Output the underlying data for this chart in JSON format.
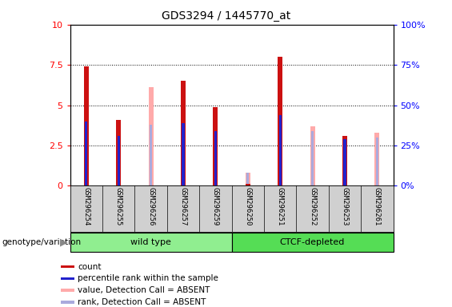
{
  "title": "GDS3294 / 1445770_at",
  "samples": [
    "GSM296254",
    "GSM296255",
    "GSM296256",
    "GSM296257",
    "GSM296259",
    "GSM296250",
    "GSM296251",
    "GSM296252",
    "GSM296253",
    "GSM296261"
  ],
  "groups": [
    {
      "label": "wild type",
      "indices": [
        0,
        1,
        2,
        3,
        4
      ],
      "color": "#90ee90"
    },
    {
      "label": "CTCF-depleted",
      "indices": [
        5,
        6,
        7,
        8,
        9
      ],
      "color": "#55dd55"
    }
  ],
  "count": [
    7.4,
    4.1,
    null,
    6.5,
    4.9,
    0.1,
    8.0,
    null,
    3.1,
    null
  ],
  "percentile_rank": [
    4.0,
    3.1,
    null,
    3.9,
    3.4,
    null,
    4.4,
    null,
    2.9,
    null
  ],
  "value_absent": [
    null,
    null,
    6.1,
    null,
    null,
    0.8,
    null,
    3.7,
    null,
    3.3
  ],
  "rank_absent": [
    null,
    null,
    3.8,
    null,
    null,
    0.8,
    null,
    3.4,
    null,
    3.0
  ],
  "ylim_left": [
    0,
    10
  ],
  "ylim_right": [
    0,
    100
  ],
  "yticks_left": [
    0,
    2.5,
    5.0,
    7.5,
    10
  ],
  "yticks_right": [
    0,
    25,
    50,
    75,
    100
  ],
  "count_color": "#cc1111",
  "percentile_color": "#2222cc",
  "value_absent_color": "#ffaaaa",
  "rank_absent_color": "#aaaadd",
  "plot_bg_color": "#ffffff",
  "sample_bg_color": "#d0d0d0",
  "legend_items": [
    {
      "label": "count",
      "color": "#cc1111"
    },
    {
      "label": "percentile rank within the sample",
      "color": "#2222cc"
    },
    {
      "label": "value, Detection Call = ABSENT",
      "color": "#ffaaaa"
    },
    {
      "label": "rank, Detection Call = ABSENT",
      "color": "#aaaadd"
    }
  ]
}
